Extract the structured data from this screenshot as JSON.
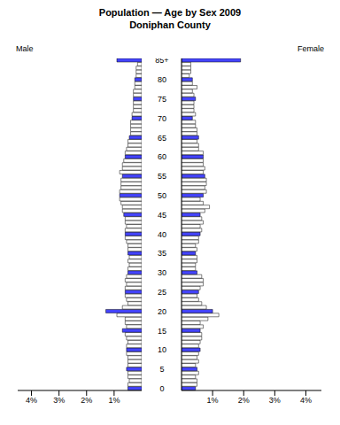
{
  "chart_data": {
    "type": "bar",
    "orientation": "horizontal",
    "title": "Population — Age by Sex 2009",
    "subtitle": "Doniphan County",
    "categories": [
      "0",
      null,
      null,
      null,
      null,
      "5",
      null,
      null,
      null,
      null,
      "10",
      null,
      null,
      null,
      null,
      "15",
      null,
      null,
      null,
      null,
      "20",
      null,
      null,
      null,
      null,
      "25",
      null,
      null,
      null,
      null,
      "30",
      null,
      null,
      null,
      null,
      "35",
      null,
      null,
      null,
      null,
      "40",
      null,
      null,
      null,
      null,
      "45",
      null,
      null,
      null,
      null,
      "50",
      null,
      null,
      null,
      null,
      "55",
      null,
      null,
      null,
      null,
      "60",
      null,
      null,
      null,
      null,
      "65",
      null,
      null,
      null,
      null,
      "70",
      null,
      null,
      null,
      null,
      "75",
      null,
      null,
      null,
      null,
      "80",
      null,
      null,
      null,
      null,
      "85+"
    ],
    "series": [
      {
        "name": "Male",
        "color": "#4444ff",
        "values": [
          0.5,
          0.5,
          0.45,
          0.5,
          0.5,
          0.55,
          0.5,
          0.5,
          0.5,
          0.55,
          0.55,
          0.55,
          0.5,
          0.55,
          0.6,
          0.7,
          0.55,
          0.6,
          0.6,
          0.9,
          1.3,
          0.7,
          0.5,
          0.55,
          0.6,
          0.6,
          0.6,
          0.55,
          0.6,
          0.55,
          0.5,
          0.5,
          0.45,
          0.5,
          0.45,
          0.5,
          0.5,
          0.5,
          0.55,
          0.6,
          0.6,
          0.6,
          0.55,
          0.6,
          0.6,
          0.65,
          0.7,
          0.7,
          0.75,
          0.8,
          0.8,
          0.8,
          0.75,
          0.75,
          0.75,
          0.7,
          0.8,
          0.7,
          0.7,
          0.65,
          0.6,
          0.6,
          0.55,
          0.5,
          0.5,
          0.45,
          0.4,
          0.4,
          0.4,
          0.4,
          0.35,
          0.35,
          0.3,
          0.3,
          0.3,
          0.3,
          0.3,
          0.3,
          0.25,
          0.25,
          0.25,
          0.2,
          0.2,
          0.2,
          0.15,
          0.9
        ]
      },
      {
        "name": "Female",
        "color": "#4444ff",
        "values": [
          0.45,
          0.5,
          0.5,
          0.45,
          0.55,
          0.5,
          0.45,
          0.55,
          0.5,
          0.55,
          0.6,
          0.55,
          0.6,
          0.65,
          0.65,
          0.6,
          0.7,
          0.6,
          0.85,
          1.2,
          1.0,
          0.8,
          0.65,
          0.55,
          0.5,
          0.55,
          0.6,
          0.7,
          0.7,
          0.65,
          0.5,
          0.45,
          0.45,
          0.5,
          0.5,
          0.45,
          0.5,
          0.45,
          0.55,
          0.55,
          0.6,
          0.65,
          0.6,
          0.7,
          0.65,
          0.6,
          0.75,
          0.9,
          0.7,
          0.6,
          0.7,
          0.8,
          0.75,
          0.8,
          0.8,
          0.75,
          0.7,
          0.75,
          0.7,
          0.7,
          0.7,
          0.7,
          0.55,
          0.55,
          0.5,
          0.55,
          0.5,
          0.5,
          0.45,
          0.45,
          0.35,
          0.45,
          0.4,
          0.4,
          0.4,
          0.45,
          0.4,
          0.35,
          0.5,
          0.35,
          0.35,
          0.25,
          0.3,
          0.3,
          0.3,
          1.9
        ]
      }
    ],
    "xlim": [
      0,
      4.5
    ],
    "xticks": [
      {
        "value": 1,
        "label": "1%"
      },
      {
        "value": 2,
        "label": "2%"
      },
      {
        "value": 3,
        "label": "3%"
      },
      {
        "value": 4,
        "label": "4%"
      }
    ]
  }
}
